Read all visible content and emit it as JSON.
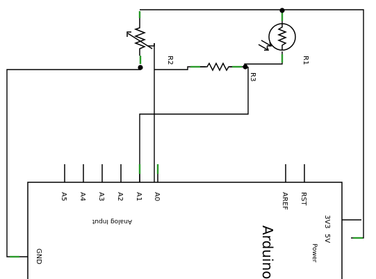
{
  "components": {
    "r1": {
      "label": "R1"
    },
    "r2": {
      "label": "R2"
    },
    "r3": {
      "label": "R3"
    }
  },
  "arduino": {
    "name": "Arduino",
    "analog_input_label": "Analog Input",
    "power_label": "Power",
    "pins": {
      "a5": "A5",
      "a4": "A4",
      "a3": "A3",
      "a2": "A2",
      "a1": "A1",
      "a0": "A0",
      "aref": "AREF",
      "rst": "RST",
      "v3v3": "3V3",
      "v5": "5V",
      "gnd": "GND"
    }
  },
  "colors": {
    "wire": "#000000",
    "pin_end": "#2a9a2a"
  }
}
